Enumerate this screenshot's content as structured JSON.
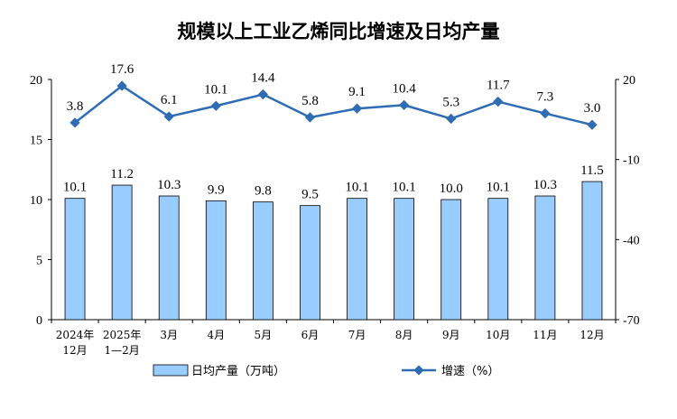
{
  "chart_data": {
    "type": "bar",
    "title": "规模以上工业乙烯同比增速及日均产量",
    "categories": [
      [
        "2024年",
        "12月"
      ],
      [
        "2025年",
        "1—2月"
      ],
      [
        "3月"
      ],
      [
        "4月"
      ],
      [
        "5月"
      ],
      [
        "6月"
      ],
      [
        "7月"
      ],
      [
        "8月"
      ],
      [
        "9月"
      ],
      [
        "10月"
      ],
      [
        "11月"
      ],
      [
        "12月"
      ]
    ],
    "series": [
      {
        "name": "日均产量（万吨）",
        "type": "bar",
        "axis": "left",
        "color": "#99ccff",
        "values": [
          10.1,
          11.2,
          10.3,
          9.9,
          9.8,
          9.5,
          10.1,
          10.1,
          10.0,
          10.1,
          10.3,
          11.5
        ],
        "labels": [
          "10.1",
          "11.2",
          "10.3",
          "9.9",
          "9.8",
          "9.5",
          "10.1",
          "10.1",
          "10.0",
          "10.1",
          "10.3",
          "11.5"
        ]
      },
      {
        "name": "增速（%）",
        "type": "line",
        "axis": "right",
        "color": "#2e6db4",
        "values": [
          3.8,
          17.6,
          6.1,
          10.1,
          14.4,
          5.8,
          9.1,
          10.4,
          5.3,
          11.7,
          7.3,
          3.0
        ],
        "labels": [
          "3.8",
          "17.6",
          "6.1",
          "10.1",
          "14.4",
          "5.8",
          "9.1",
          "10.4",
          "5.3",
          "11.7",
          "7.3",
          "3.0"
        ]
      }
    ],
    "yleft": {
      "min": 0,
      "max": 20,
      "ticks": [
        0,
        5,
        10,
        15,
        20
      ]
    },
    "yright": {
      "min": -70,
      "max": 20,
      "ticks": [
        -70,
        -40,
        -10,
        20
      ]
    },
    "legend_position": "bottom",
    "grid": false
  }
}
